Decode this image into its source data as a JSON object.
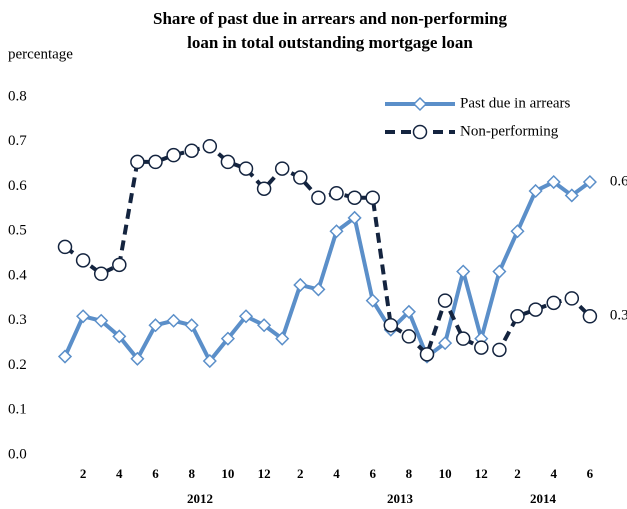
{
  "chart_data": {
    "type": "line",
    "title": [
      "Share of past due in arrears and non-performing",
      "loan in total outstanding mortgage loan"
    ],
    "y_label": "percentage",
    "categories": [
      null,
      "2",
      null,
      "4",
      null,
      "6",
      null,
      "8",
      null,
      "10",
      null,
      "12",
      null,
      "2",
      null,
      "4",
      null,
      "6",
      null,
      "8",
      null,
      "10",
      null,
      "12",
      null,
      "2",
      null,
      "4",
      null,
      "6"
    ],
    "x_groups": [
      "2012",
      "2013",
      "2014"
    ],
    "series": [
      {
        "name": "Past due in arrears",
        "color": "#5b8fc9",
        "marker": "diamond",
        "dashed": false,
        "end_label": "0.6",
        "values": [
          0.22,
          0.31,
          0.3,
          0.265,
          0.215,
          0.29,
          0.3,
          0.29,
          0.21,
          0.26,
          0.31,
          0.29,
          0.26,
          0.38,
          0.37,
          0.5,
          0.53,
          0.345,
          0.28,
          0.32,
          0.22,
          0.25,
          0.41,
          0.26,
          0.41,
          0.5,
          0.59,
          0.61,
          0.58,
          0.61
        ]
      },
      {
        "name": "Non-performing",
        "color": "#14243f",
        "marker": "circle",
        "dashed": true,
        "end_label": "0.3",
        "values": [
          0.465,
          0.435,
          0.405,
          0.425,
          0.655,
          0.655,
          0.67,
          0.68,
          0.69,
          0.655,
          0.64,
          0.595,
          0.64,
          0.62,
          0.575,
          0.585,
          0.575,
          0.575,
          0.29,
          0.265,
          0.225,
          0.345,
          0.26,
          0.24,
          0.235,
          0.31,
          0.325,
          0.34,
          0.35,
          0.31
        ]
      }
    ],
    "ylim": [
      0,
      0.8
    ],
    "yticks": [
      {
        "value": 0,
        "label": "0.0"
      },
      0.1,
      0.2,
      0.3,
      0.4,
      0.5,
      0.6,
      0.7,
      0.8
    ],
    "grid": false
  }
}
